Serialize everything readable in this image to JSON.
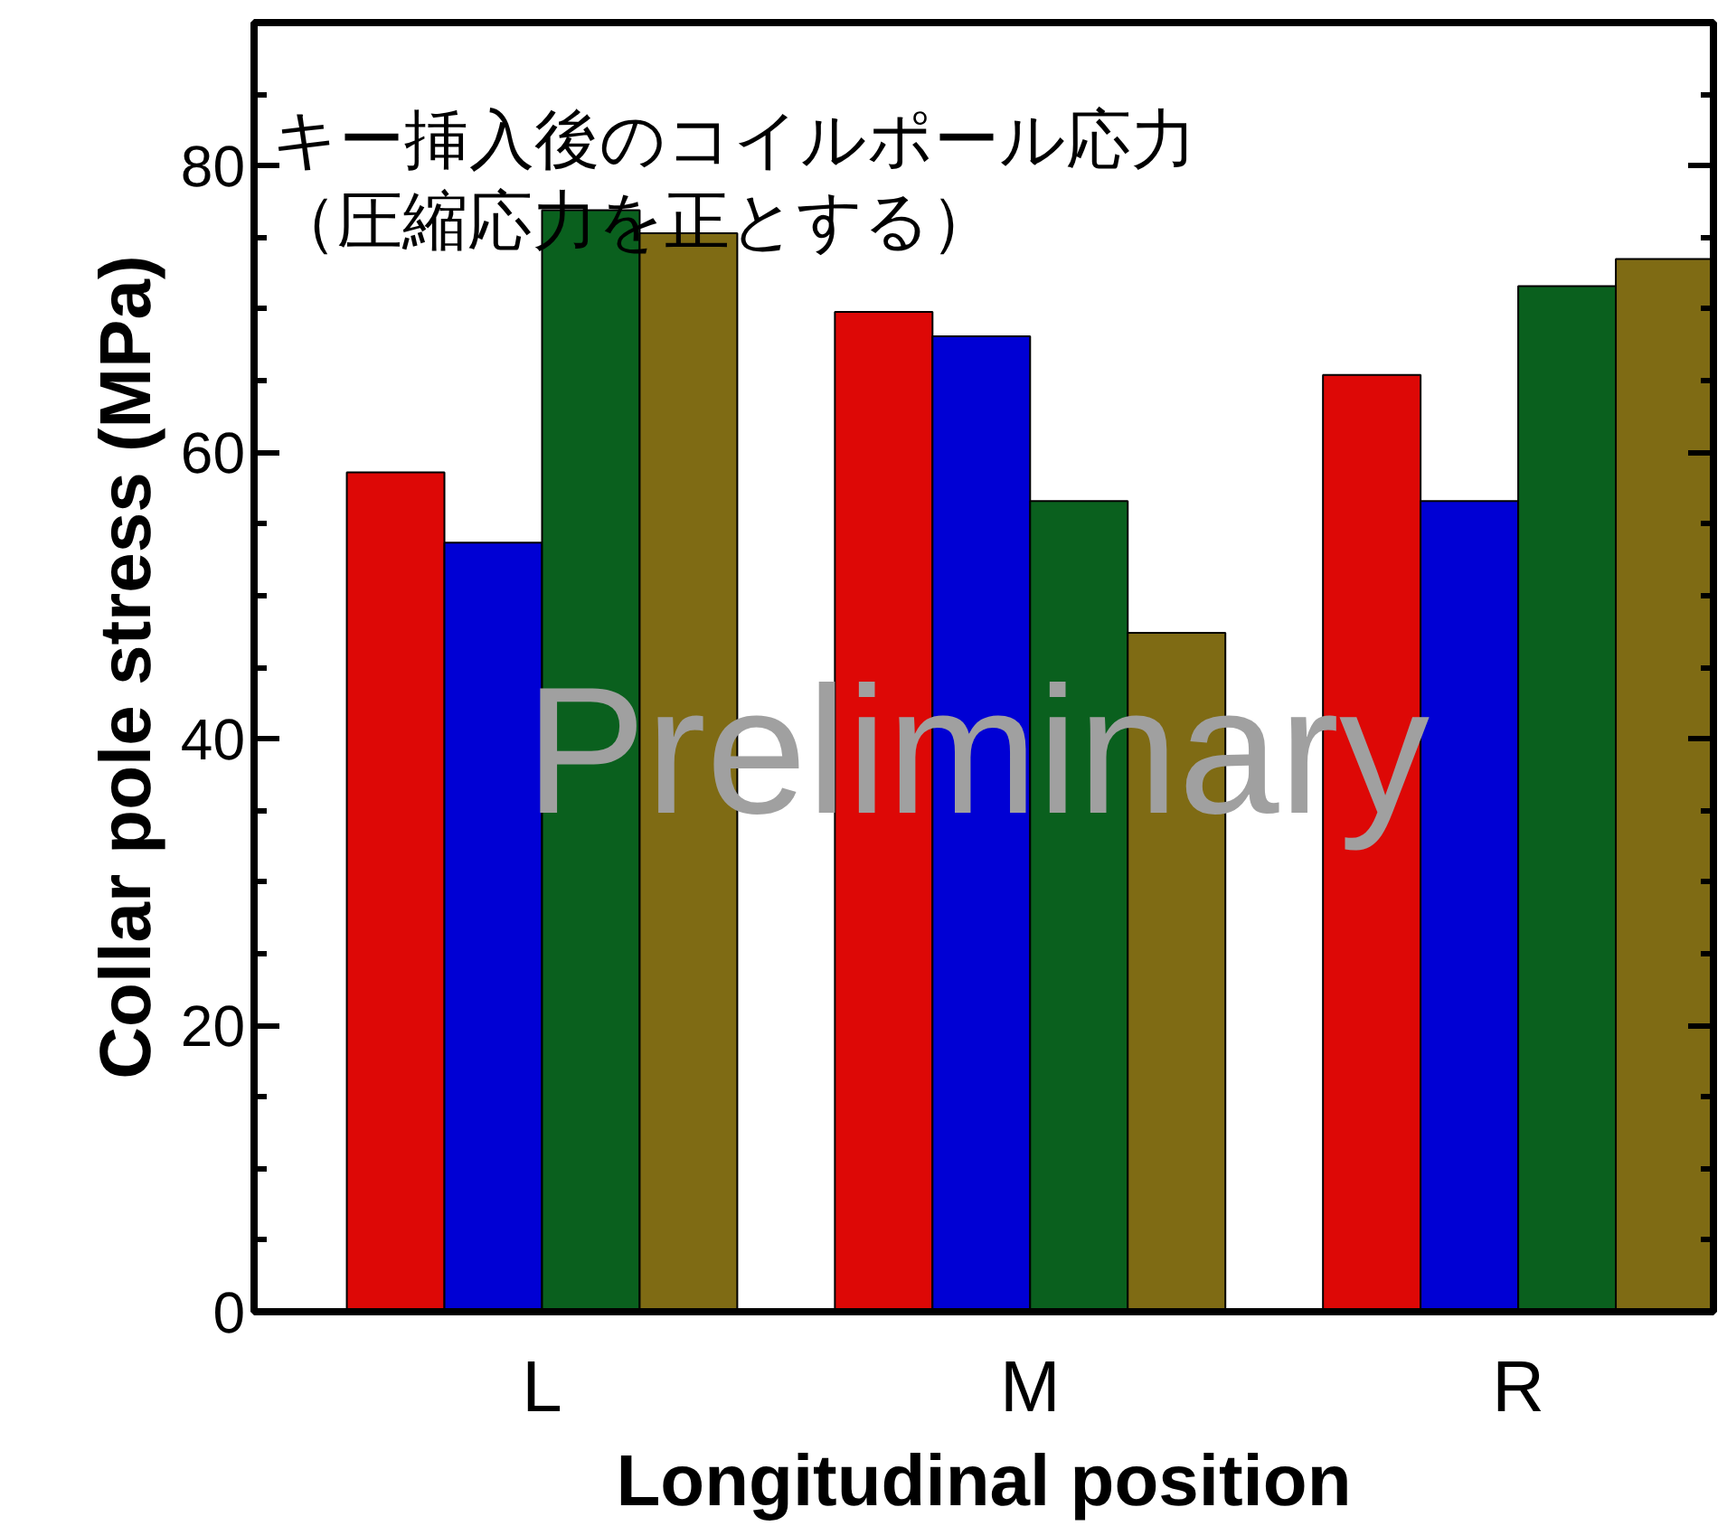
{
  "chart_data": {
    "type": "bar",
    "title": "キー挿入後のコイルポール応力",
    "subtitle": "（圧縮応力を正とする）",
    "xlabel": "Longitudinal position",
    "ylabel": "Collar pole stress (MPa)",
    "categories": [
      "L",
      "M",
      "R"
    ],
    "series": [
      {
        "color": "#dd0806",
        "values": [
          58.6,
          69.8,
          65.4
        ]
      },
      {
        "color": "#0000d4",
        "values": [
          53.7,
          68.1,
          56.6
        ]
      },
      {
        "color": "#0a601e",
        "values": [
          76.9,
          56.6,
          71.6
        ]
      },
      {
        "color": "#7f6b14",
        "values": [
          75.3,
          47.4,
          73.5
        ]
      }
    ],
    "ylim": [
      0,
      90
    ],
    "yticks": [
      0,
      20,
      40,
      60,
      80
    ],
    "annotations": [
      "Preliminary"
    ],
    "grid": false
  }
}
